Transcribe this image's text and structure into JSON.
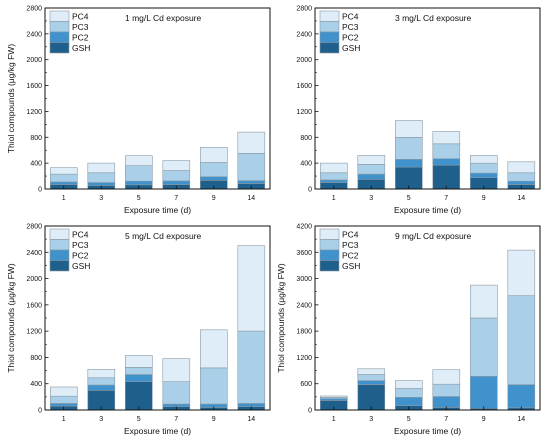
{
  "colors": {
    "GSH": "#1f5f8b",
    "PC2": "#3f92cc",
    "PC3": "#a9d0e8",
    "PC4": "#deedf7",
    "bar_stroke": "#8a9aa6",
    "axis": "#111111"
  },
  "chart_data": [
    {
      "type": "bar",
      "stacked": true,
      "title": "1 mg/L Cd exposure",
      "xlabel": "Exposure time (d)",
      "ylabel": "Thiol compounds (μg/kg FW)",
      "ylim": [
        0,
        2800
      ],
      "yticks": [
        0,
        400,
        800,
        1200,
        1600,
        2000,
        2400,
        2800
      ],
      "categories": [
        "1",
        "3",
        "5",
        "7",
        "9",
        "14"
      ],
      "legend_position": "top-left",
      "series": [
        {
          "name": "GSH",
          "values": [
            70,
            55,
            65,
            70,
            135,
            85
          ]
        },
        {
          "name": "PC2",
          "values": [
            40,
            45,
            55,
            55,
            55,
            45
          ]
        },
        {
          "name": "PC3",
          "values": [
            120,
            150,
            240,
            160,
            220,
            420
          ]
        },
        {
          "name": "PC4",
          "values": [
            100,
            150,
            155,
            155,
            235,
            330
          ]
        }
      ]
    },
    {
      "type": "bar",
      "stacked": true,
      "title": "3 mg/L Cd exposure",
      "xlabel": "Exposure time (d)",
      "ylabel": "",
      "ylim": [
        0,
        2800
      ],
      "yticks": [
        0,
        400,
        800,
        1200,
        1600,
        2000,
        2400,
        2800
      ],
      "categories": [
        "1",
        "3",
        "5",
        "7",
        "9",
        "14"
      ],
      "legend_position": "top-left",
      "series": [
        {
          "name": "GSH",
          "values": [
            100,
            150,
            340,
            370,
            175,
            70
          ]
        },
        {
          "name": "PC2",
          "values": [
            40,
            80,
            120,
            100,
            70,
            50
          ]
        },
        {
          "name": "PC3",
          "values": [
            110,
            150,
            340,
            230,
            155,
            130
          ]
        },
        {
          "name": "PC4",
          "values": [
            150,
            140,
            260,
            190,
            120,
            170
          ]
        }
      ]
    },
    {
      "type": "bar",
      "stacked": true,
      "title": "5 mg/L Cd exposure",
      "xlabel": "Exposure time (d)",
      "ylabel": "Thiol compounds (μg/kg FW)",
      "ylim": [
        0,
        2800
      ],
      "yticks": [
        0,
        400,
        800,
        1200,
        1600,
        2000,
        2400,
        2800
      ],
      "categories": [
        "1",
        "3",
        "5",
        "7",
        "9",
        "14"
      ],
      "legend_position": "top-left",
      "series": [
        {
          "name": "GSH",
          "values": [
            60,
            300,
            430,
            50,
            40,
            50
          ]
        },
        {
          "name": "PC2",
          "values": [
            40,
            80,
            110,
            40,
            50,
            50
          ]
        },
        {
          "name": "PC3",
          "values": [
            110,
            110,
            110,
            340,
            550,
            1100
          ]
        },
        {
          "name": "PC4",
          "values": [
            140,
            130,
            180,
            350,
            580,
            1300
          ]
        }
      ]
    },
    {
      "type": "bar",
      "stacked": true,
      "title": "9 mg/L Cd exposure",
      "xlabel": "Exposure time (d)",
      "ylabel": "Thiol compounds (μg/kg FW)",
      "ylim": [
        0,
        4200
      ],
      "yticks": [
        0,
        600,
        1200,
        1800,
        2400,
        3000,
        3600,
        4200
      ],
      "categories": [
        "1",
        "3",
        "5",
        "7",
        "9",
        "14"
      ],
      "legend_position": "top-left",
      "series": [
        {
          "name": "GSH",
          "values": [
            220,
            580,
            100,
            60,
            40,
            50
          ]
        },
        {
          "name": "PC2",
          "values": [
            40,
            90,
            190,
            250,
            730,
            530
          ]
        },
        {
          "name": "PC3",
          "values": [
            30,
            140,
            200,
            280,
            1330,
            2030
          ]
        },
        {
          "name": "PC4",
          "values": [
            30,
            130,
            180,
            330,
            750,
            1040
          ]
        }
      ]
    }
  ]
}
